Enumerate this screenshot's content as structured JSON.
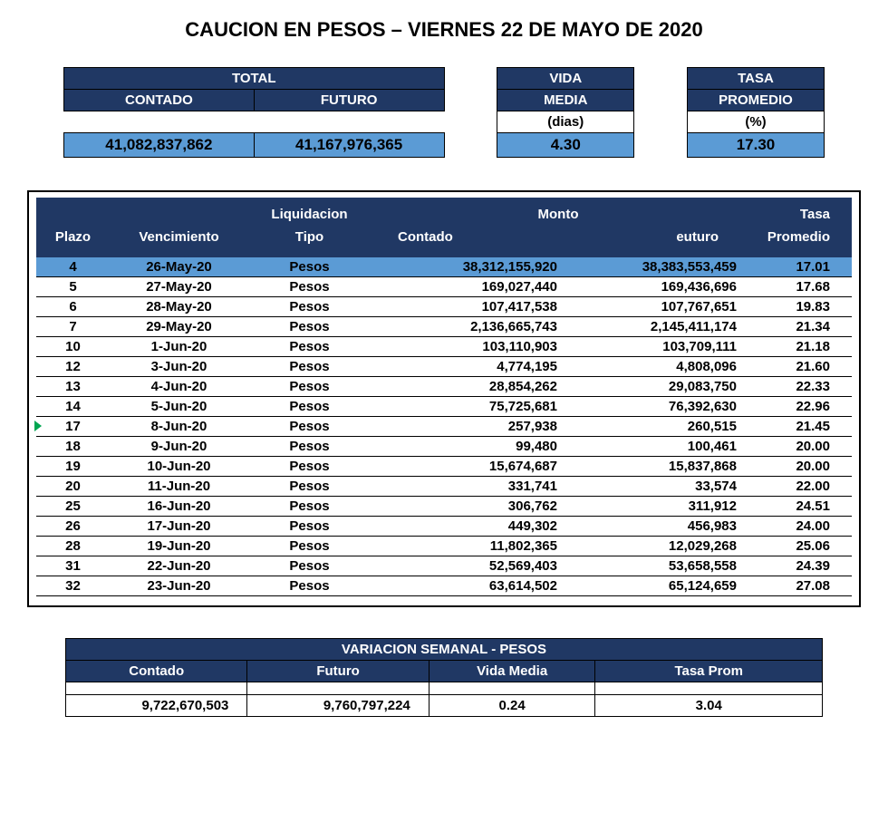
{
  "title": "CAUCION EN PESOS – VIERNES 22 DE MAYO DE 2020",
  "colors": {
    "header_bg": "#203864",
    "header_fg": "#ffffff",
    "highlight_bg": "#5b9bd5",
    "border": "#000000",
    "background": "#ffffff",
    "green_marker": "#00a651"
  },
  "summary": {
    "labels": {
      "total": "TOTAL",
      "contado": "CONTADO",
      "futuro": "FUTURO",
      "vida": "VIDA",
      "media": "MEDIA",
      "tasa": "TASA",
      "promedio": "PROMEDIO",
      "dias": "(dias)",
      "pct": "(%)"
    },
    "values": {
      "contado": "41,082,837,862",
      "futuro": "41,167,976,365",
      "vida_media": "4.30",
      "tasa_promedio": "17.30"
    }
  },
  "detail": {
    "headers": {
      "plazo": "Plazo",
      "vencimiento": "Vencimiento",
      "liquidacion": "Liquidacion",
      "tipo": "Tipo",
      "monto": "Monto",
      "contado": "Contado",
      "euturo": "euturo",
      "tasa": "Tasa",
      "promedio": "Promedio"
    },
    "green_marker_row_index": 8,
    "rows": [
      {
        "plazo": "4",
        "venc": "26-May-20",
        "tipo": "Pesos",
        "contado": "38,312,155,920",
        "futuro": "38,383,553,459",
        "tasa": "17.01",
        "highlight": true
      },
      {
        "plazo": "5",
        "venc": "27-May-20",
        "tipo": "Pesos",
        "contado": "169,027,440",
        "futuro": "169,436,696",
        "tasa": "17.68",
        "highlight": false
      },
      {
        "plazo": "6",
        "venc": "28-May-20",
        "tipo": "Pesos",
        "contado": "107,417,538",
        "futuro": "107,767,651",
        "tasa": "19.83",
        "highlight": false
      },
      {
        "plazo": "7",
        "venc": "29-May-20",
        "tipo": "Pesos",
        "contado": "2,136,665,743",
        "futuro": "2,145,411,174",
        "tasa": "21.34",
        "highlight": false
      },
      {
        "plazo": "10",
        "venc": "1-Jun-20",
        "tipo": "Pesos",
        "contado": "103,110,903",
        "futuro": "103,709,111",
        "tasa": "21.18",
        "highlight": false
      },
      {
        "plazo": "12",
        "venc": "3-Jun-20",
        "tipo": "Pesos",
        "contado": "4,774,195",
        "futuro": "4,808,096",
        "tasa": "21.60",
        "highlight": false
      },
      {
        "plazo": "13",
        "venc": "4-Jun-20",
        "tipo": "Pesos",
        "contado": "28,854,262",
        "futuro": "29,083,750",
        "tasa": "22.33",
        "highlight": false
      },
      {
        "plazo": "14",
        "venc": "5-Jun-20",
        "tipo": "Pesos",
        "contado": "75,725,681",
        "futuro": "76,392,630",
        "tasa": "22.96",
        "highlight": false
      },
      {
        "plazo": "17",
        "venc": "8-Jun-20",
        "tipo": "Pesos",
        "contado": "257,938",
        "futuro": "260,515",
        "tasa": "21.45",
        "highlight": false
      },
      {
        "plazo": "18",
        "venc": "9-Jun-20",
        "tipo": "Pesos",
        "contado": "99,480",
        "futuro": "100,461",
        "tasa": "20.00",
        "highlight": false
      },
      {
        "plazo": "19",
        "venc": "10-Jun-20",
        "tipo": "Pesos",
        "contado": "15,674,687",
        "futuro": "15,837,868",
        "tasa": "20.00",
        "highlight": false
      },
      {
        "plazo": "20",
        "venc": "11-Jun-20",
        "tipo": "Pesos",
        "contado": "331,741",
        "futuro": "33,574",
        "tasa": "22.00",
        "highlight": false
      },
      {
        "plazo": "25",
        "venc": "16-Jun-20",
        "tipo": "Pesos",
        "contado": "306,762",
        "futuro": "311,912",
        "tasa": "24.51",
        "highlight": false
      },
      {
        "plazo": "26",
        "venc": "17-Jun-20",
        "tipo": "Pesos",
        "contado": "449,302",
        "futuro": "456,983",
        "tasa": "24.00",
        "highlight": false
      },
      {
        "plazo": "28",
        "venc": "19-Jun-20",
        "tipo": "Pesos",
        "contado": "11,802,365",
        "futuro": "12,029,268",
        "tasa": "25.06",
        "highlight": false
      },
      {
        "plazo": "31",
        "venc": "22-Jun-20",
        "tipo": "Pesos",
        "contado": "52,569,403",
        "futuro": "53,658,558",
        "tasa": "24.39",
        "highlight": false
      },
      {
        "plazo": "32",
        "venc": "23-Jun-20",
        "tipo": "Pesos",
        "contado": "63,614,502",
        "futuro": "65,124,659",
        "tasa": "27.08",
        "highlight": false
      }
    ]
  },
  "variation": {
    "title": "VARIACION SEMANAL - PESOS",
    "headers": {
      "contado": "Contado",
      "futuro": "Futuro",
      "vida_media": "Vida Media",
      "tasa_prom": "Tasa Prom"
    },
    "values": {
      "contado": "9,722,670,503",
      "futuro": "9,760,797,224",
      "vida_media": "0.24",
      "tasa_prom": "3.04"
    }
  }
}
